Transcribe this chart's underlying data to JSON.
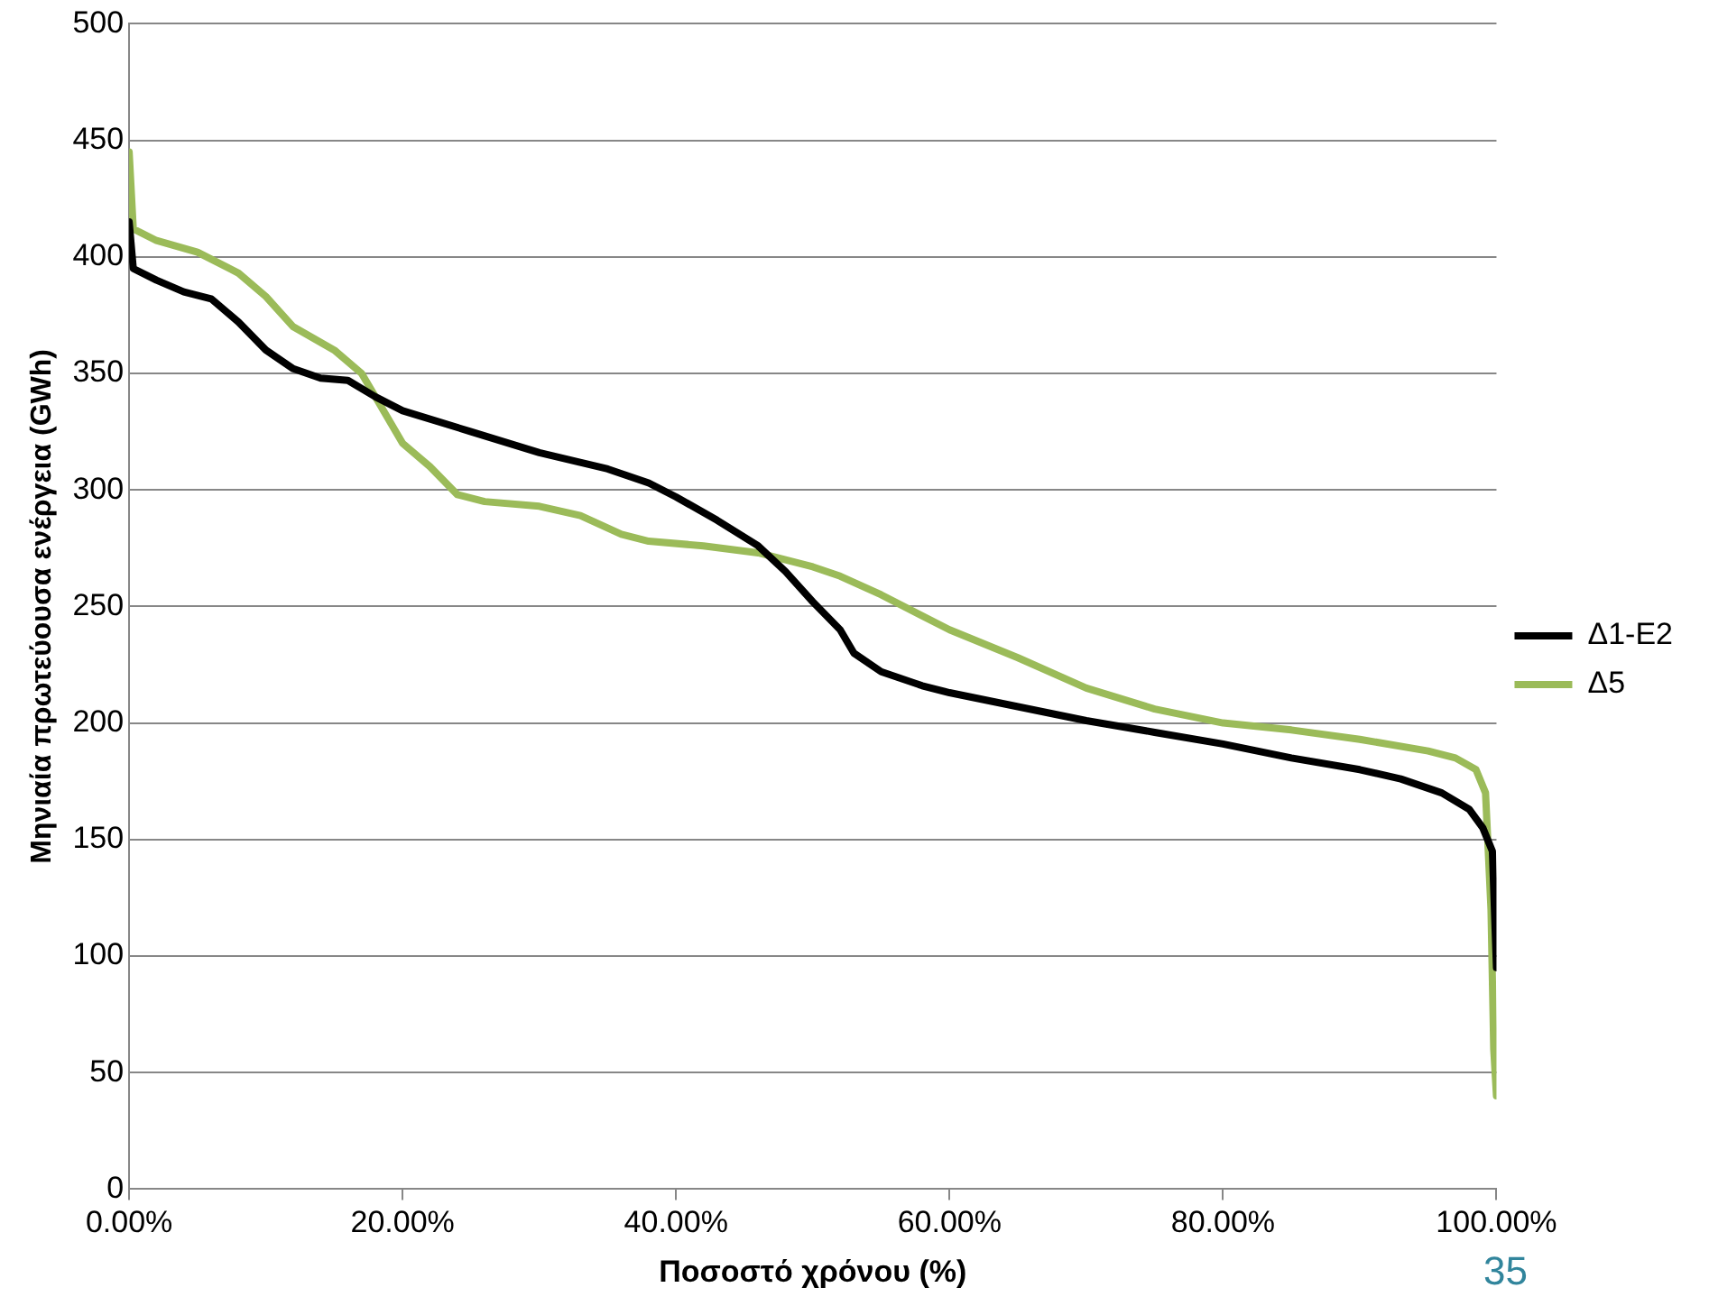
{
  "chart_data": {
    "type": "line",
    "xlabel": "Ποσοστό χρόνου (%)",
    "ylabel": "Μηνιαία πρωτεύουσα ενέργεια (GWh)",
    "xlim": [
      0,
      100
    ],
    "xticks": [
      {
        "value": 0,
        "label": "0.00%"
      },
      {
        "value": 20,
        "label": "20.00%"
      },
      {
        "value": 40,
        "label": "40.00%"
      },
      {
        "value": 60,
        "label": "60.00%"
      },
      {
        "value": 80,
        "label": "80.00%"
      },
      {
        "value": 100,
        "label": "100.00%"
      }
    ],
    "ylim": [
      0,
      500
    ],
    "yticks": [
      0,
      50,
      100,
      150,
      200,
      250,
      300,
      350,
      400,
      450,
      500
    ],
    "grid": "y",
    "legend": "right",
    "marker": "none",
    "line_style": "solid",
    "annotations": [
      "35"
    ],
    "series": [
      {
        "name": "Δ1-Ε2",
        "color": "#000000",
        "x": [
          0,
          0.3,
          2,
          4,
          6,
          8,
          10,
          12,
          14,
          16,
          18,
          20,
          25,
          30,
          35,
          38,
          40,
          43,
          46,
          48,
          50,
          52,
          53,
          55,
          58,
          60,
          65,
          70,
          75,
          80,
          85,
          90,
          93,
          96,
          98,
          99,
          99.7,
          100
        ],
        "values": [
          415,
          395,
          390,
          385,
          382,
          372,
          360,
          352,
          348,
          347,
          340,
          334,
          325,
          316,
          309,
          303,
          297,
          287,
          276,
          265,
          252,
          240,
          230,
          222,
          216,
          213,
          207,
          201,
          196,
          191,
          185,
          180,
          176,
          170,
          163,
          155,
          145,
          95
        ]
      },
      {
        "name": "Δ5",
        "color": "#9bbb59",
        "x": [
          0,
          0.3,
          2,
          5,
          8,
          10,
          12,
          15,
          17,
          18,
          20,
          22,
          24,
          26,
          30,
          33,
          36,
          38,
          42,
          46,
          48,
          50,
          52,
          55,
          60,
          65,
          70,
          75,
          80,
          85,
          90,
          95,
          97,
          98.5,
          99.2,
          99.6,
          99.8,
          100
        ],
        "values": [
          445,
          412,
          407,
          402,
          393,
          383,
          370,
          360,
          350,
          340,
          320,
          310,
          298,
          295,
          293,
          289,
          281,
          278,
          276,
          273,
          270,
          267,
          263,
          255,
          240,
          228,
          215,
          206,
          200,
          197,
          193,
          188,
          185,
          180,
          170,
          120,
          60,
          40
        ]
      }
    ]
  }
}
